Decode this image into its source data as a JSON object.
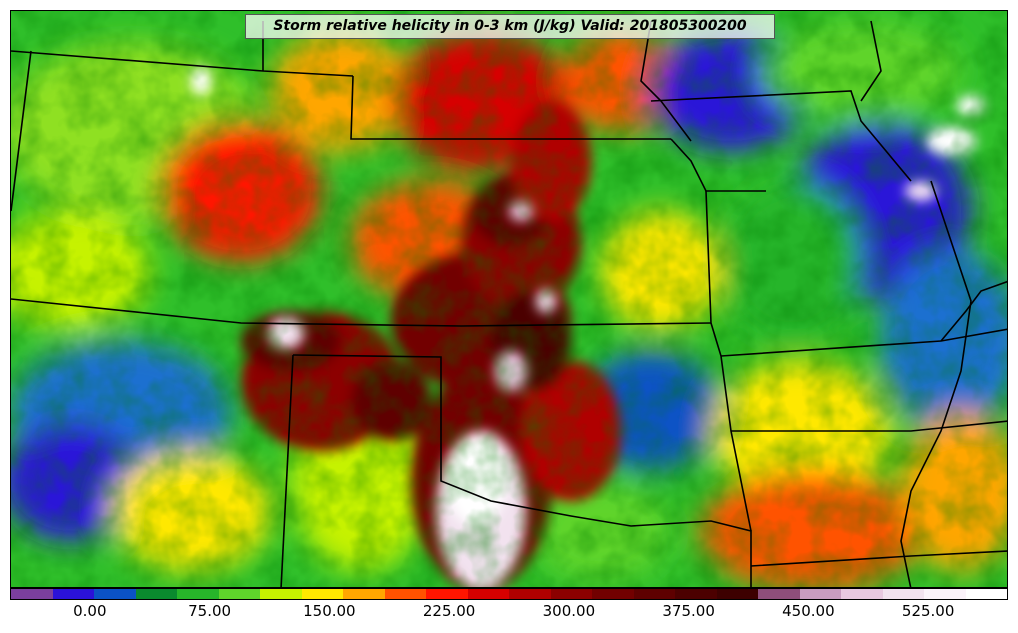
{
  "map": {
    "title": "Storm relative helicity in 0-3 km (J/kg) Valid: 201805300200",
    "field": "storm-relative-helicity",
    "border_color": "#000000"
  },
  "colorbar": {
    "min": -50,
    "max": 575,
    "step": 25,
    "colors": [
      "#7b3f9e",
      "#2b12d8",
      "#0b52c5",
      "#0a8a2e",
      "#27b52a",
      "#5fd42b",
      "#c6f200",
      "#ffe800",
      "#ffa600",
      "#ff5200",
      "#ff1500",
      "#d60000",
      "#b00000",
      "#8c0000",
      "#720000",
      "#5e0000",
      "#4c0000",
      "#3d0000",
      "#8e4e7a",
      "#c99cc0",
      "#e8c8e0",
      "#f2e2ef",
      "#fbf3fa",
      "#ffffff"
    ],
    "ticks": [
      "0.00",
      "75.00",
      "150.00",
      "225.00",
      "300.00",
      "375.00",
      "450.00",
      "525.00"
    ],
    "tick_values": [
      0,
      75,
      150,
      225,
      300,
      375,
      450,
      525
    ]
  }
}
